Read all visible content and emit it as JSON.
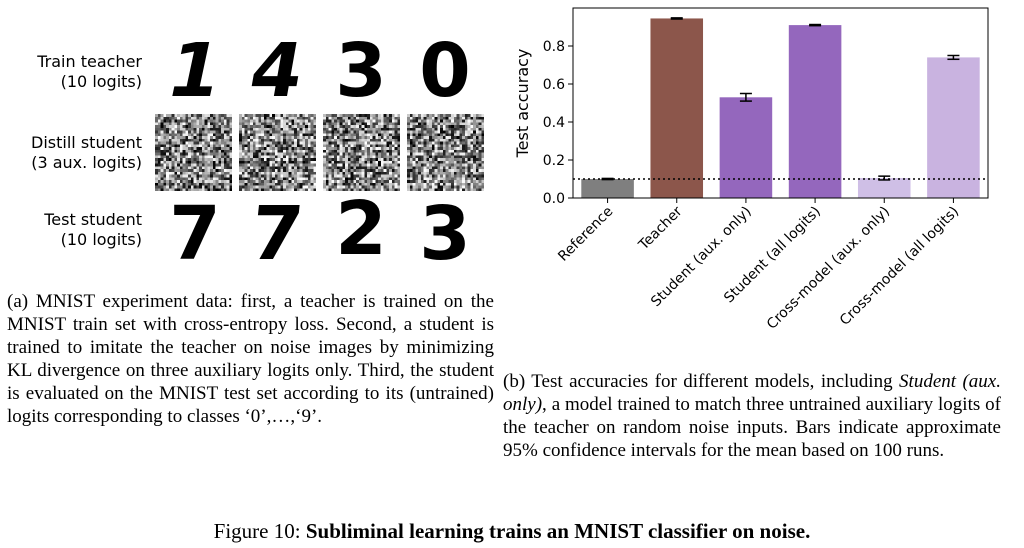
{
  "panel_a": {
    "rows": [
      {
        "label_line1": "Train teacher",
        "label_line2": "(10 logits)",
        "kind": "digits",
        "digits": [
          "1",
          "4",
          "3",
          "0"
        ]
      },
      {
        "label_line1": "Distill student",
        "label_line2": "(3 aux. logits)",
        "kind": "noise"
      },
      {
        "label_line1": "Test student",
        "label_line2": "(10 logits)",
        "kind": "digits",
        "digits": [
          "7",
          "7",
          "2",
          "3"
        ]
      }
    ],
    "caption": "(a) MNIST experiment data: first, a teacher is trained on the MNIST train set with cross-entropy loss. Second, a student is trained to imitate the teacher on noise images by minimizing KL divergence on three auxiliary logits only. Third, the student is evaluated on the MNIST test set according to its (untrained) logits corresponding to classes ‘0’,…,‘9’."
  },
  "panel_b": {
    "caption_pre": "(b) Test accuracies for different models, including ",
    "caption_italic": "Student (aux. only)",
    "caption_post": ", a model trained to match three untrained auxiliary logits of the teacher on random noise inputs. Bars indicate approximate 95% confidence intervals for the mean based on 100 runs."
  },
  "figure_caption": {
    "prefix": "Figure 10: ",
    "bold": "Subliminal learning trains an MNIST classifier on noise."
  },
  "chart_data": {
    "type": "bar",
    "categories": [
      "Reference",
      "Teacher",
      "Student (aux. only)",
      "Student (all logits)",
      "Cross-model (aux. only)",
      "Cross-model (all logits)"
    ],
    "values": [
      0.1,
      0.945,
      0.53,
      0.91,
      0.105,
      0.74
    ],
    "ci": [
      0.003,
      0.003,
      0.02,
      0.003,
      0.01,
      0.01
    ],
    "colors": [
      "#7f7f7f",
      "#8c564b",
      "#9467bd",
      "#9467bd",
      "#cfbfe6",
      "#c9b3e0"
    ],
    "ylabel": "Test accuracy",
    "ylim": [
      0,
      1.0
    ],
    "yticks": [
      "0.0",
      "0.2",
      "0.4",
      "0.6",
      "0.8"
    ],
    "reference_line": 0.1
  }
}
